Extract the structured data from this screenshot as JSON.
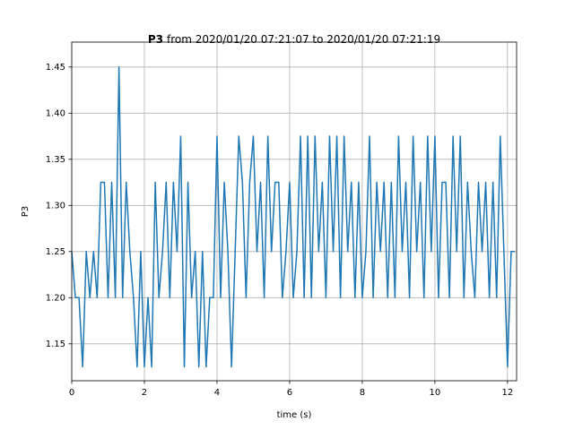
{
  "chart_data": {
    "type": "line",
    "title_bold": "P3",
    "title": "from 2020/01/20 07:21:07 to 2020/01/20 07:21:19",
    "xlabel": "time (s)",
    "ylabel": "P3",
    "color": "#1f77b4",
    "grid": true,
    "xlim": [
      0,
      12.25
    ],
    "ylim": [
      1.11,
      1.477
    ],
    "xticks": [
      0,
      2,
      4,
      6,
      8,
      10,
      12
    ],
    "yticks": [
      1.15,
      {
        "value": 1.2,
        "label": "1.20"
      },
      1.25,
      {
        "value": 1.3,
        "label": "1.30"
      },
      1.35,
      {
        "value": 1.4,
        "label": "1.40"
      },
      1.45
    ],
    "x": [
      0,
      0.1,
      0.2,
      0.3,
      0.4,
      0.5,
      0.6,
      0.7,
      0.8,
      0.9,
      1,
      1.1,
      1.2,
      1.3,
      1.4,
      1.5,
      1.6,
      1.7,
      1.8,
      1.9,
      2,
      2.1,
      2.2,
      2.3,
      2.4,
      2.5,
      2.6,
      2.7,
      2.8,
      2.9,
      3,
      3.1,
      3.2,
      3.3,
      3.4,
      3.5,
      3.6,
      3.7,
      3.8,
      3.9,
      4,
      4.1,
      4.2,
      4.3,
      4.4,
      4.5,
      4.6,
      4.7,
      4.8,
      4.9,
      5,
      5.1,
      5.2,
      5.3,
      5.4,
      5.5,
      5.6,
      5.7,
      5.8,
      5.9,
      6,
      6.1,
      6.2,
      6.3,
      6.4,
      6.5,
      6.6,
      6.7,
      6.8,
      6.9,
      7,
      7.1,
      7.2,
      7.3,
      7.4,
      7.5,
      7.6,
      7.7,
      7.8,
      7.9,
      8,
      8.1,
      8.2,
      8.3,
      8.4,
      8.5,
      8.6,
      8.7,
      8.8,
      8.9,
      9,
      9.1,
      9.2,
      9.3,
      9.4,
      9.5,
      9.6,
      9.7,
      9.8,
      9.9,
      10,
      10.1,
      10.2,
      10.3,
      10.4,
      10.5,
      10.6,
      10.7,
      10.8,
      10.9,
      11,
      11.1,
      11.2,
      11.3,
      11.4,
      11.5,
      11.6,
      11.7,
      11.8,
      11.9,
      12,
      12.1,
      12.2
    ],
    "values": [
      1.25,
      1.2,
      1.2,
      1.125,
      1.25,
      1.2,
      1.25,
      1.2,
      1.325,
      1.325,
      1.2,
      1.325,
      1.2,
      1.45,
      1.2,
      1.325,
      1.25,
      1.2,
      1.125,
      1.25,
      1.125,
      1.2,
      1.125,
      1.325,
      1.2,
      1.25,
      1.325,
      1.2,
      1.325,
      1.25,
      1.375,
      1.125,
      1.325,
      1.2,
      1.25,
      1.125,
      1.25,
      1.125,
      1.2,
      1.2,
      1.375,
      1.2,
      1.325,
      1.25,
      1.125,
      1.25,
      1.375,
      1.325,
      1.2,
      1.325,
      1.375,
      1.25,
      1.325,
      1.2,
      1.375,
      1.25,
      1.325,
      1.325,
      1.2,
      1.25,
      1.325,
      1.2,
      1.25,
      1.375,
      1.2,
      1.375,
      1.2,
      1.375,
      1.25,
      1.325,
      1.2,
      1.375,
      1.25,
      1.375,
      1.2,
      1.375,
      1.25,
      1.325,
      1.2,
      1.325,
      1.2,
      1.25,
      1.375,
      1.2,
      1.325,
      1.25,
      1.325,
      1.2,
      1.325,
      1.2,
      1.375,
      1.25,
      1.325,
      1.2,
      1.375,
      1.25,
      1.325,
      1.2,
      1.375,
      1.25,
      1.375,
      1.2,
      1.325,
      1.325,
      1.2,
      1.375,
      1.25,
      1.375,
      1.2,
      1.325,
      1.25,
      1.2,
      1.325,
      1.25,
      1.325,
      1.2,
      1.325,
      1.2,
      1.375,
      1.25,
      1.125,
      1.25,
      1.25
    ]
  }
}
